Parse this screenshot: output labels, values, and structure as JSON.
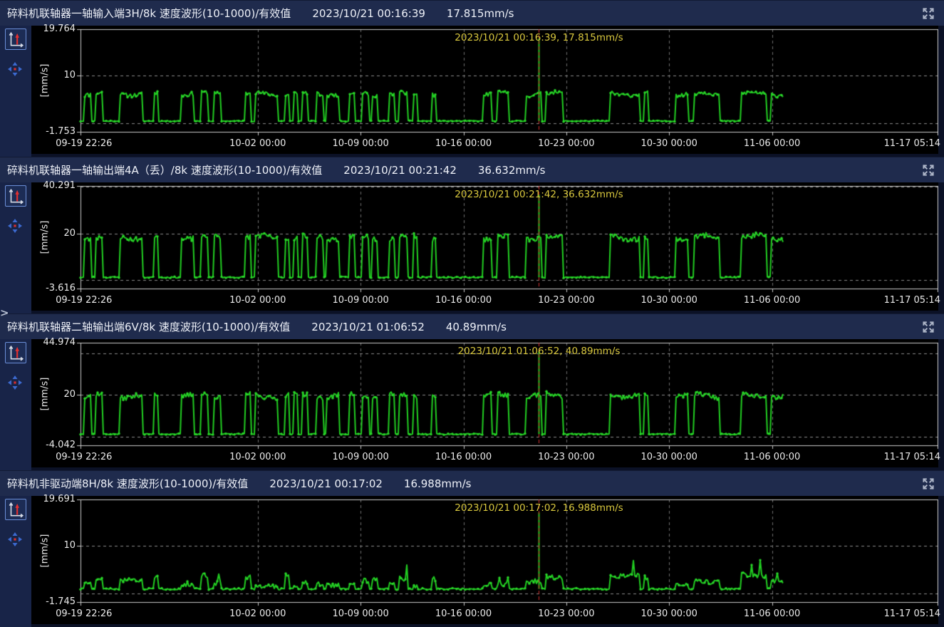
{
  "colors": {
    "trace": "#21cd21",
    "marker": "#2bd82b",
    "cursor": "#cf2f2f",
    "annotation": "#d9c83e",
    "grid": "#8a8a8a",
    "grid_vertical": "#6e6e6e",
    "frame": "#c9c9c9",
    "tick": "#c9c9c9",
    "chart_bg": "#000000",
    "titlebar_bg": "#1f2b4d",
    "page_bg": "#0b1126",
    "tools_bg": "#182448"
  },
  "left_nav": {
    "collapse_chevron": ">"
  },
  "icons": {
    "expand": "expand-fullscreen-arrows",
    "autoscale": "axis-with-red-arrow",
    "pan": "four-direction-move-arrows"
  },
  "time_ticks": {
    "labels": [
      "09-19 22:26",
      "10-02 00:00",
      "10-09 00:00",
      "10-16 00:00",
      "10-23 00:00",
      "10-30 00:00",
      "11-06 00:00",
      "11-17 05:14"
    ],
    "fracs": [
      0,
      0.2068,
      0.3268,
      0.4468,
      0.5668,
      0.6868,
      0.8068,
      1.0
    ]
  },
  "run_intervals": [
    [
      0.004,
      0.013
    ],
    [
      0.017,
      0.026
    ],
    [
      0.045,
      0.072
    ],
    [
      0.085,
      0.091
    ],
    [
      0.118,
      0.133
    ],
    [
      0.14,
      0.148
    ],
    [
      0.155,
      0.163
    ],
    [
      0.192,
      0.199
    ],
    [
      0.204,
      0.231
    ],
    [
      0.238,
      0.244
    ],
    [
      0.248,
      0.254
    ],
    [
      0.258,
      0.265
    ],
    [
      0.275,
      0.283
    ],
    [
      0.287,
      0.302
    ],
    [
      0.313,
      0.32
    ],
    [
      0.329,
      0.336
    ],
    [
      0.34,
      0.347
    ],
    [
      0.36,
      0.367
    ],
    [
      0.372,
      0.382
    ],
    [
      0.388,
      0.394
    ],
    [
      0.409,
      0.415
    ],
    [
      0.47,
      0.48
    ],
    [
      0.486,
      0.5
    ],
    [
      0.52,
      0.537
    ],
    [
      0.542,
      0.562
    ],
    [
      0.617,
      0.652
    ],
    [
      0.657,
      0.663
    ],
    [
      0.694,
      0.709
    ],
    [
      0.716,
      0.746
    ],
    [
      0.77,
      0.8
    ],
    [
      0.806,
      0.82
    ]
  ],
  "charts": [
    {
      "title": "碎料机联轴器一轴输入端3H/8k 速度波形(10-1000)/有效值",
      "timestamp": "2023/10/21 00:16:39",
      "value": "17.815mm/s",
      "annotation": "2023/10/21 00:16:39, 17.815mm/s",
      "unit_label": "[mm/s]",
      "y_axis": {
        "max": 19.764,
        "mid": 10,
        "min": -1.753,
        "max_label": "19.764",
        "mid_label": "10",
        "min_label": "-1.753"
      },
      "grid_values": [
        10,
        0
      ],
      "series": {
        "type": "line",
        "low": 0.5,
        "high": 6.2,
        "noise_high": 0.45,
        "noise_low": 0.12,
        "peak": 17.815,
        "cursor_frac": 0.5345,
        "data_end_frac": 0.82,
        "seed": 11,
        "spiky": false
      }
    },
    {
      "title": "碎料机联轴器一轴输出端4A（丢）/8k 速度波形(10-1000)/有效值",
      "timestamp": "2023/10/21 00:21:42",
      "value": "36.632mm/s",
      "annotation": "2023/10/21 00:21:42, 36.632mm/s",
      "unit_label": "[mm/s]",
      "y_axis": {
        "max": 40.291,
        "mid": 20,
        "min": -3.616,
        "max_label": "40.291",
        "mid_label": "20",
        "min_label": "-3.616"
      },
      "grid_values": [
        40,
        20,
        0
      ],
      "series": {
        "type": "line",
        "low": 1.2,
        "high": 18.3,
        "noise_high": 1.1,
        "noise_low": 0.3,
        "peak": 36.632,
        "cursor_frac": 0.5345,
        "data_end_frac": 0.82,
        "seed": 23,
        "spiky": false
      }
    },
    {
      "title": "碎料机联轴器二轴输出端6V/8k 速度波形(10-1000)/有效值",
      "timestamp": "2023/10/21 01:06:52",
      "value": "40.89mm/s",
      "annotation": "2023/10/21 01:06:52, 40.89mm/s",
      "unit_label": "[mm/s]",
      "y_axis": {
        "max": 44.974,
        "mid": 20,
        "min": -4.042,
        "max_label": "44.974",
        "mid_label": "20",
        "min_label": "-4.042"
      },
      "grid_values": [
        40,
        20,
        0
      ],
      "series": {
        "type": "line",
        "low": 1.3,
        "high": 19.6,
        "noise_high": 1.2,
        "noise_low": 0.3,
        "peak": 40.89,
        "cursor_frac": 0.5345,
        "data_end_frac": 0.82,
        "seed": 37,
        "spiky": false
      }
    },
    {
      "title": "碎料机非驱动端8H/8k 速度波形(10-1000)/有效值",
      "timestamp": "2023/10/21 00:17:02",
      "value": "16.988mm/s",
      "annotation": "2023/10/21 00:17:02, 16.988mm/s",
      "unit_label": "[mm/s]",
      "y_axis": {
        "max": 19.691,
        "mid": 10,
        "min": -1.745,
        "max_label": "19.691",
        "mid_label": "10",
        "min_label": "-1.745"
      },
      "grid_values": [
        10,
        0
      ],
      "series": {
        "type": "line",
        "low": 1.0,
        "high": 2.6,
        "noise_high": 0.5,
        "noise_low": 0.18,
        "peak": 16.988,
        "cursor_frac": 0.5345,
        "data_end_frac": 0.82,
        "seed": 51,
        "spiky": true
      }
    }
  ]
}
